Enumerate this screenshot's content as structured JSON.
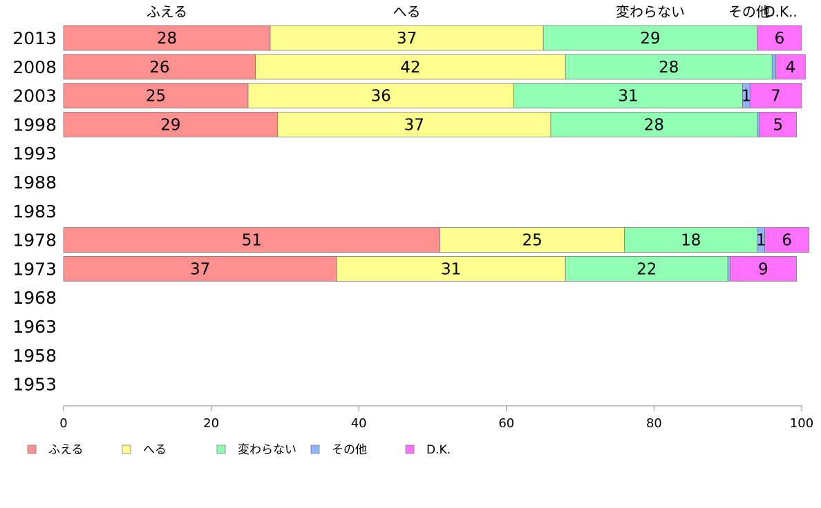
{
  "chart_data": {
    "type": "bar",
    "orientation": "horizontal",
    "stacked": true,
    "xlim": [
      0,
      100
    ],
    "x_ticks": [
      "0",
      "20",
      "40",
      "60",
      "80",
      "100"
    ],
    "categories": [
      "2013",
      "2008",
      "2003",
      "1998",
      "1993",
      "1988",
      "1983",
      "1978",
      "1973",
      "1968",
      "1963",
      "1958",
      "1953"
    ],
    "series": [
      {
        "name": "ふえる",
        "color": "#ff9090",
        "values": [
          28,
          26,
          25,
          29,
          null,
          null,
          null,
          51,
          37,
          null,
          null,
          null,
          null
        ]
      },
      {
        "name": "へる",
        "color": "#ffff90",
        "values": [
          37,
          42,
          36,
          37,
          null,
          null,
          null,
          25,
          31,
          null,
          null,
          null,
          null
        ]
      },
      {
        "name": "変わらない",
        "color": "#90ffb4",
        "values": [
          29,
          28,
          31,
          28,
          null,
          null,
          null,
          18,
          22,
          null,
          null,
          null,
          null
        ]
      },
      {
        "name": "その他",
        "color": "#90b4ff",
        "values": [
          0,
          0.5,
          1,
          0.3,
          null,
          null,
          null,
          1,
          0.3,
          null,
          null,
          null,
          null
        ]
      },
      {
        "name": "D.K.",
        "color": "#ff70ff",
        "values": [
          6,
          4,
          7,
          5,
          null,
          null,
          null,
          6,
          9,
          null,
          null,
          null,
          null
        ]
      }
    ],
    "top_labels": [
      "ふえる",
      "へる",
      "変わらない",
      "その他",
      "D.K.."
    ],
    "data_labels": [
      [
        "28",
        "37",
        "29",
        "",
        "6"
      ],
      [
        "26",
        "42",
        "28",
        "",
        "4"
      ],
      [
        "25",
        "36",
        "31",
        "1",
        "7"
      ],
      [
        "29",
        "37",
        "28",
        "",
        "5"
      ],
      null,
      null,
      null,
      [
        "51",
        "25",
        "18",
        "1",
        "6"
      ],
      [
        "37",
        "31",
        "22",
        "",
        "9"
      ],
      null,
      null,
      null,
      null
    ],
    "legend": {
      "position": "bottom-left",
      "entries": [
        "ふえる",
        "へる",
        "変わらない",
        "その他",
        "D.K."
      ]
    },
    "grid": false,
    "title": ""
  }
}
